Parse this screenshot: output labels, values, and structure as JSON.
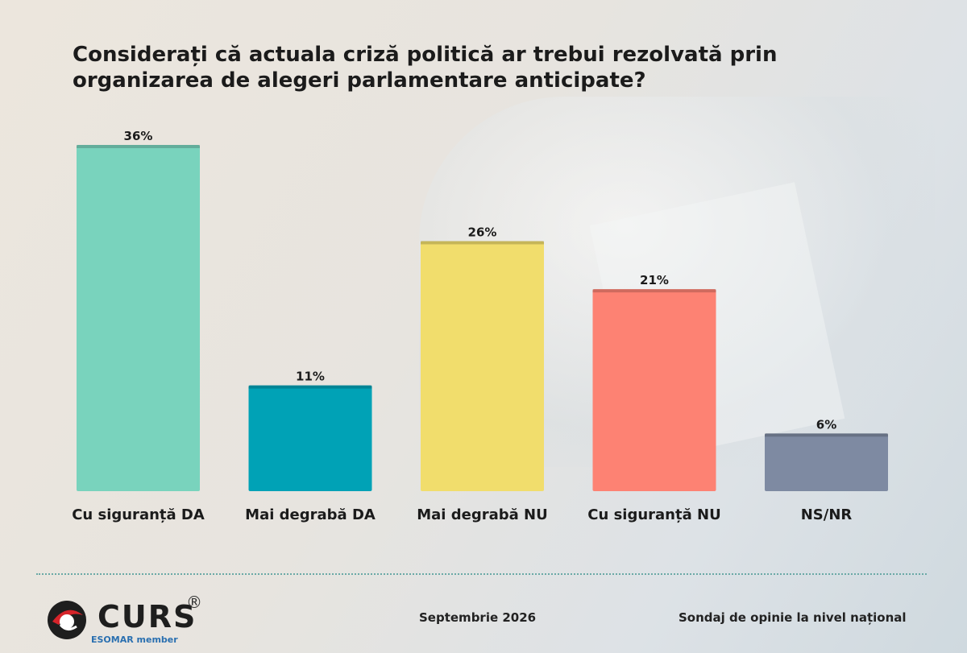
{
  "chart_data": {
    "type": "bar",
    "title": "Considerați că actuala criză politică ar trebui rezolvată prin organizarea de alegeri parlamentare anticipate?",
    "categories": [
      "Cu siguranță DA",
      "Mai degrabă DA",
      "Mai degrabă NU",
      "Cu siguranță NU",
      "NS/NR"
    ],
    "values": [
      36,
      11,
      26,
      21,
      6
    ],
    "value_labels": [
      "36%",
      "11%",
      "26%",
      "21%",
      "6%"
    ],
    "colors": [
      "#79d3bd",
      "#00a2b6",
      "#f1dd6c",
      "#fd8273",
      "#7e8aa2"
    ],
    "ylim": [
      0,
      36
    ],
    "grid": false,
    "legend": "none"
  },
  "footer": {
    "logo_text": "CURS",
    "logo_reg": "®",
    "logo_sub": "ESOMAR member",
    "date": "Septembrie 2026",
    "source": "Sondaj de opinie la nivel național"
  }
}
